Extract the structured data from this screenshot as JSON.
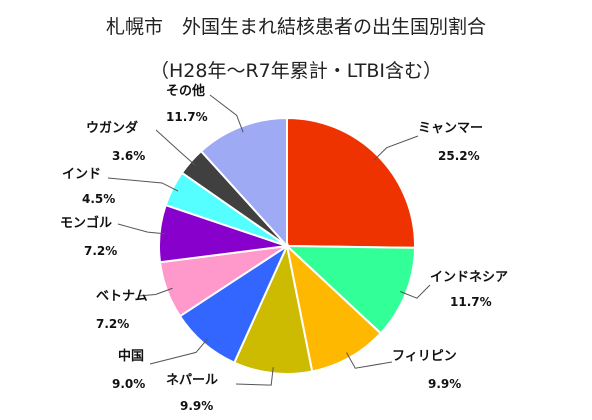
{
  "chart_data": {
    "type": "pie",
    "title": "札幌市　外国生まれ結核患者の出生国別割合",
    "subtitle": "（H28年～R7年累計・LTBI含む）",
    "categories": [
      "ミャンマー",
      "インドネシア",
      "フィリピン",
      "ネパール",
      "中国",
      "ベトナム",
      "モンゴル",
      "インド",
      "ウガンダ",
      "その他"
    ],
    "values": [
      25.2,
      11.7,
      9.9,
      9.9,
      9.0,
      7.2,
      7.2,
      4.5,
      3.6,
      11.7
    ],
    "value_labels": [
      "25.2%",
      "11.7%",
      "9.9%",
      "9.9%",
      "9.0%",
      "7.2%",
      "7.2%",
      "4.5%",
      "3.6%",
      "11.7%"
    ],
    "colors": [
      "#EE3300",
      "#33FF99",
      "#FFB800",
      "#CCBB00",
      "#3366FF",
      "#FF99CC",
      "#8800CC",
      "#55FFFF",
      "#404040",
      "#9FAAF5"
    ],
    "start_angle": "12 o'clock, clockwise",
    "legend": "none (direct labels with leader lines)"
  }
}
